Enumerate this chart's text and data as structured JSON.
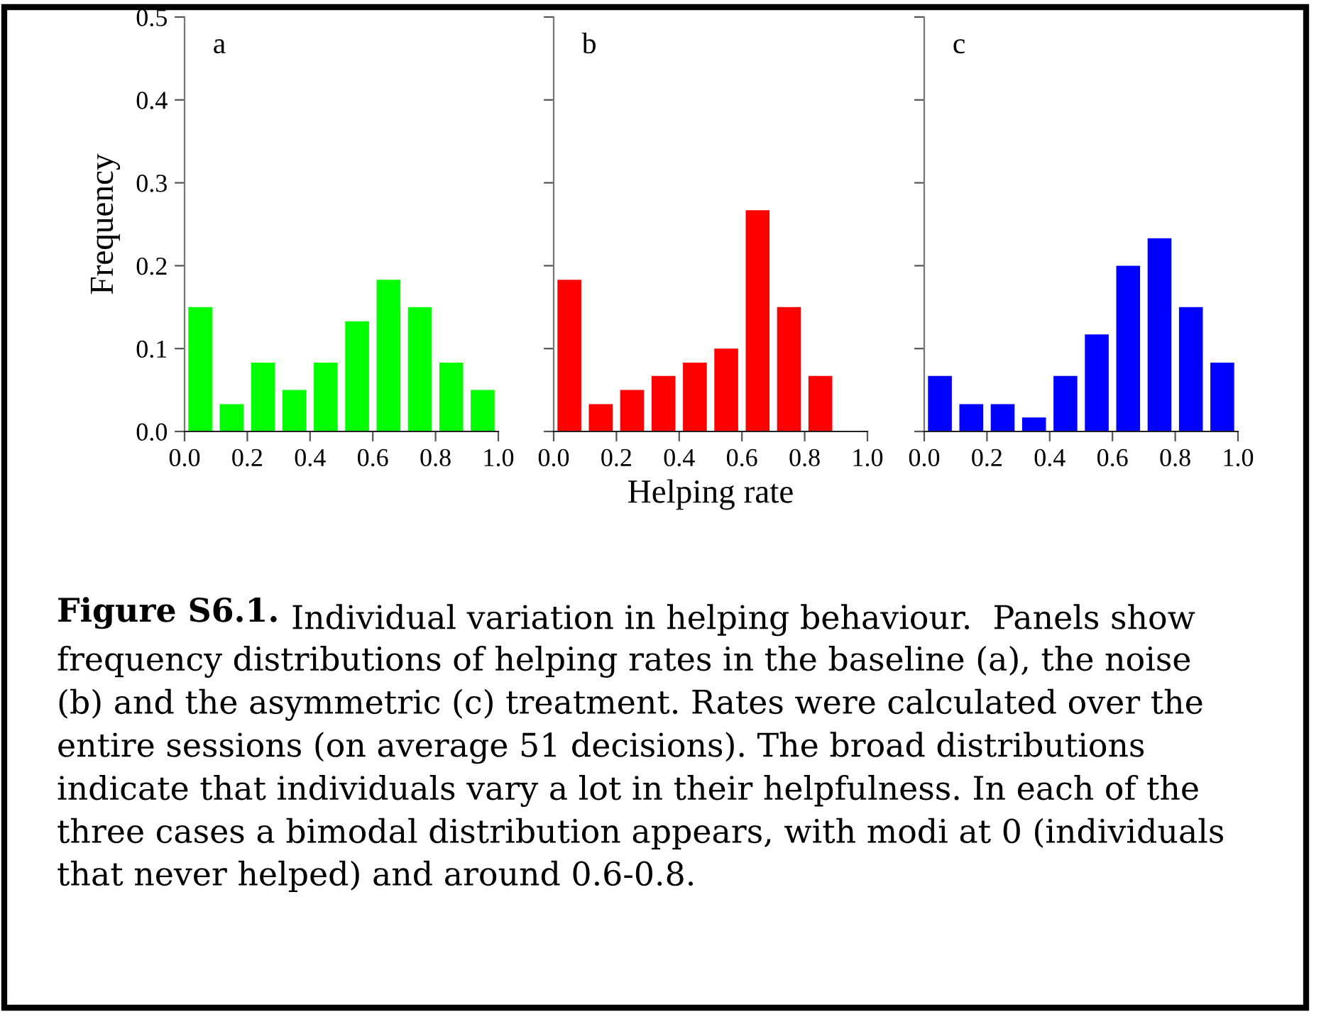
{
  "chart_data": [
    {
      "type": "histogram",
      "ylabel": "Frequency",
      "color": "#00ff00",
      "bins": [
        0,
        0.1,
        0.2,
        0.3,
        0.4,
        0.5,
        0.6,
        0.7,
        0.8,
        0.9,
        1.0
      ],
      "values": [
        0.15,
        0.033,
        0.083,
        0.05,
        0.083,
        0.133,
        0.183,
        0.15,
        0.083,
        0.05
      ],
      "xlim": [
        0,
        1.0
      ],
      "ylim": [
        0,
        0.5
      ],
      "xticks": [
        {
          "value": 0,
          "label": "0.0"
        },
        {
          "value": 0.2,
          "label": "0.2"
        },
        {
          "value": 0.4,
          "label": "0.4"
        },
        {
          "value": 0.6,
          "label": "0.6"
        },
        {
          "value": 0.8,
          "label": "0.8"
        },
        {
          "value": 1.0,
          "label": "1.0"
        }
      ],
      "yticks": [
        {
          "value": 0,
          "label": "0.0"
        },
        {
          "value": 0.1,
          "label": "0.1"
        },
        {
          "value": 0.2,
          "label": "0.2"
        },
        {
          "value": 0.3,
          "label": "0.3"
        },
        {
          "value": 0.4,
          "label": "0.4"
        },
        {
          "value": 0.5,
          "label": "0.5"
        }
      ],
      "grid": false,
      "annotations": [
        "a",
        "Figure S6.1.",
        "Individual variation in helping behaviour.  Panels show",
        "frequency distributions of helping rates in the baseline (a), the noise\n(b) and the asymmetric (c) treatment. Rates were calculated over the\nentire sessions (on average 51 decisions). The broad distributions\nindicate that individuals vary a lot in their helpfulness. In each of the\nthree cases a bimodal distribution appears, with modi at 0 (individuals\nthat never helped) and around 0.6-0.8."
      ]
    },
    {
      "type": "histogram",
      "xlabel": "Helping rate",
      "color": "#ff0000",
      "bins": [
        0,
        0.1,
        0.2,
        0.3,
        0.4,
        0.5,
        0.6,
        0.7,
        0.8,
        0.9,
        1.0
      ],
      "values": [
        0.183,
        0.033,
        0.05,
        0.067,
        0.083,
        0.1,
        0.267,
        0.15,
        0.067,
        0
      ],
      "xlim": [
        0,
        1.0
      ],
      "ylim": [
        0,
        0.5
      ],
      "xticks": [
        {
          "value": 0,
          "label": "0.0"
        },
        {
          "value": 0.2,
          "label": "0.2"
        },
        {
          "value": 0.4,
          "label": "0.4"
        },
        {
          "value": 0.6,
          "label": "0.6"
        },
        {
          "value": 0.8,
          "label": "0.8"
        },
        {
          "value": 1.0,
          "label": "1.0"
        }
      ],
      "yticks": [
        {
          "value": 0,
          "label": null
        },
        {
          "value": 0.1,
          "label": null
        },
        {
          "value": 0.2,
          "label": null
        },
        {
          "value": 0.3,
          "label": null
        },
        {
          "value": 0.4,
          "label": null
        },
        {
          "value": 0.5,
          "label": null
        }
      ],
      "tick_labels": "x",
      "grid": false,
      "annotations": [
        "b"
      ]
    },
    {
      "type": "histogram",
      "color": "#0000ff",
      "bins": [
        0,
        0.1,
        0.2,
        0.3,
        0.4,
        0.5,
        0.6,
        0.7,
        0.8,
        0.9,
        1.0
      ],
      "values": [
        0.067,
        0.033,
        0.033,
        0.017,
        0.067,
        0.117,
        0.2,
        0.233,
        0.15,
        0.083
      ],
      "xlim": [
        0,
        1.0
      ],
      "ylim": [
        0,
        0.5
      ],
      "xticks": [
        {
          "value": 0,
          "label": "0.0"
        },
        {
          "value": 0.2,
          "label": "0.2"
        },
        {
          "value": 0.4,
          "label": "0.4"
        },
        {
          "value": 0.6,
          "label": "0.6"
        },
        {
          "value": 0.8,
          "label": "0.8"
        },
        {
          "value": 1.0,
          "label": "1.0"
        }
      ],
      "yticks": [
        {
          "value": 0,
          "label": null
        },
        {
          "value": 0.1,
          "label": null
        },
        {
          "value": 0.2,
          "label": null
        },
        {
          "value": 0.3,
          "label": null
        },
        {
          "value": 0.4,
          "label": null
        },
        {
          "value": 0.5,
          "label": null
        }
      ],
      "tick_labels": "x",
      "grid": false,
      "annotations": [
        "c"
      ]
    }
  ]
}
